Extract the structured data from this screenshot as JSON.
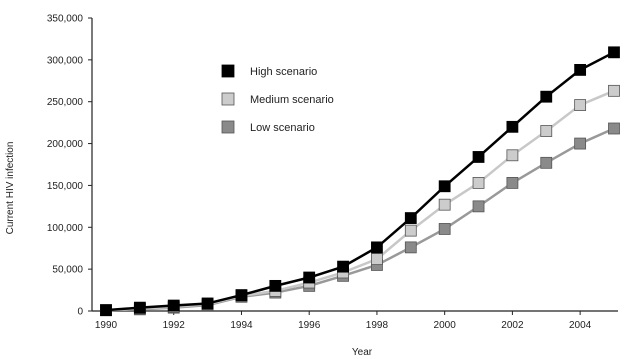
{
  "chart_data": {
    "type": "line",
    "title": "",
    "xlabel": "Year",
    "ylabel": "Current HIV infection",
    "xlim": [
      1990,
      2005
    ],
    "ylim": [
      0,
      350000
    ],
    "x_ticks": [
      1990,
      1992,
      1994,
      1996,
      1998,
      2000,
      2002,
      2004
    ],
    "x_tick_labels": [
      "1990",
      "1992",
      "1994",
      "1996",
      "1998",
      "2000",
      "2002",
      "2004"
    ],
    "y_ticks": [
      0,
      50000,
      100000,
      150000,
      200000,
      250000,
      300000,
      350000
    ],
    "y_tick_labels": [
      "0",
      "50,000",
      "100,000",
      "150,000",
      "200,000",
      "250,000",
      "300,000",
      "350,000"
    ],
    "grid": false,
    "legend_position": "top-left",
    "x": [
      1990,
      1991,
      1992,
      1993,
      1994,
      1995,
      1996,
      1997,
      1998,
      1999,
      2000,
      2001,
      2002,
      2003,
      2004,
      2005
    ],
    "series": [
      {
        "name": "High scenario",
        "line_color": "#000000",
        "marker_color": "#000000",
        "values": [
          1000,
          4000,
          6500,
          9000,
          19000,
          30000,
          40000,
          53000,
          76000,
          111000,
          149000,
          184000,
          220000,
          256000,
          288000,
          309000
        ]
      },
      {
        "name": "Medium scenario",
        "line_color": "#c8c8c8",
        "marker_color": "#cccccc",
        "values": [
          1000,
          3000,
          5000,
          8000,
          18000,
          24000,
          34000,
          46000,
          62000,
          96000,
          127000,
          153000,
          186000,
          215000,
          246000,
          263000
        ]
      },
      {
        "name": "Low scenario",
        "line_color": "#999999",
        "marker_color": "#8a8a8a",
        "values": [
          1000,
          2000,
          4000,
          7000,
          17000,
          22000,
          30000,
          42000,
          55000,
          76000,
          98000,
          125000,
          153000,
          177000,
          200000,
          218000
        ]
      }
    ]
  }
}
